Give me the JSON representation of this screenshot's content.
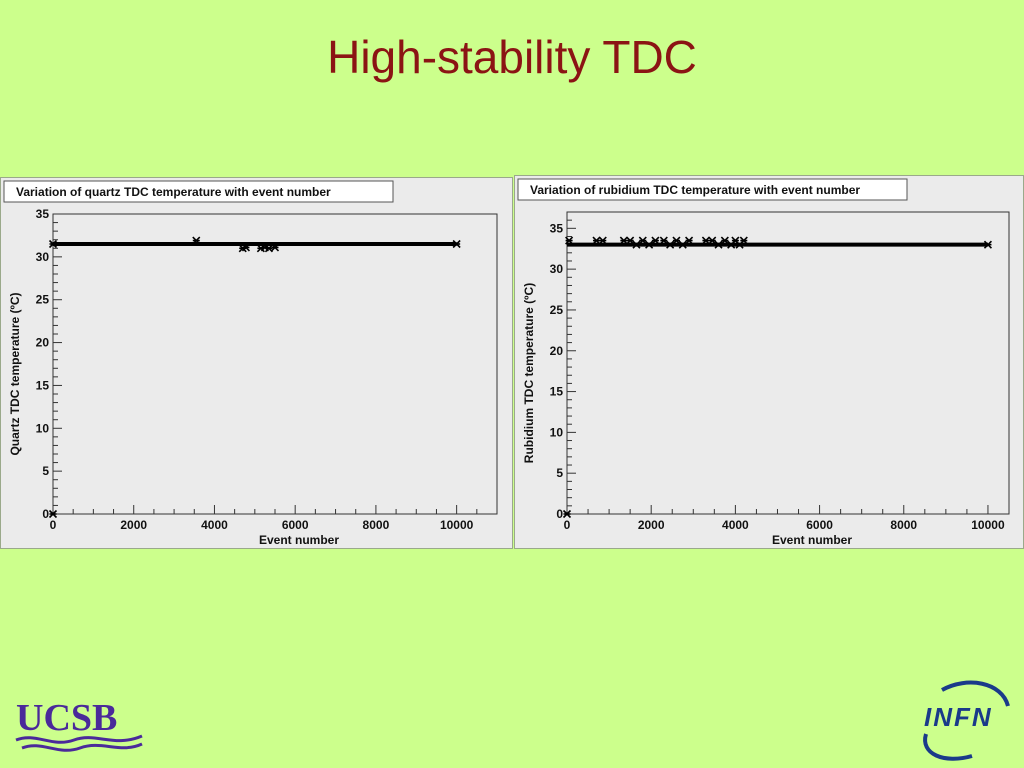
{
  "slide": {
    "title": "High-stability TDC",
    "background": "#ccff8c",
    "title_color": "#8b1414"
  },
  "logos": {
    "ucsb": {
      "text": "UCSB",
      "color": "#4a2a9a"
    },
    "infn": {
      "text": "INFN",
      "color": "#1a3a8a",
      "accent": "#2a9ab8"
    }
  },
  "chart_data": [
    {
      "type": "scatter",
      "title": "Variation of quartz TDC temperature with event number",
      "xlabel": "Event number",
      "ylabel": "Quartz TDC temperature (ºC)",
      "xlim": [
        0,
        11000
      ],
      "ylim": [
        0,
        35
      ],
      "xticks": [
        0,
        2000,
        4000,
        6000,
        8000,
        10000
      ],
      "yticks": [
        0,
        5,
        10,
        15,
        20,
        25,
        30,
        35
      ],
      "grid": false,
      "marker": "star",
      "series": [
        {
          "baseline": {
            "x": [
              0,
              10000
            ],
            "y": 31.5
          },
          "points": [
            {
              "x": 0,
              "y": 31.5
            },
            {
              "x": 0,
              "y": 0
            },
            {
              "x": 3550,
              "y": 31.9
            },
            {
              "x": 4700,
              "y": 31.0
            },
            {
              "x": 4780,
              "y": 31.1
            },
            {
              "x": 5150,
              "y": 31.0
            },
            {
              "x": 5250,
              "y": 31.1
            },
            {
              "x": 5350,
              "y": 31.0
            },
            {
              "x": 5500,
              "y": 31.1
            },
            {
              "x": 10000,
              "y": 31.5
            }
          ]
        }
      ]
    },
    {
      "type": "scatter",
      "title": "Variation of rubidium TDC temperature with event number",
      "xlabel": "Event number",
      "ylabel": "Rubidium TDC temperature (ºC)",
      "xlim": [
        0,
        10500
      ],
      "ylim": [
        0,
        37
      ],
      "xticks": [
        0,
        2000,
        4000,
        6000,
        8000,
        10000
      ],
      "yticks": [
        0,
        5,
        10,
        15,
        20,
        25,
        30,
        35
      ],
      "grid": false,
      "marker": "star",
      "series": [
        {
          "baseline": {
            "x": [
              0,
              10000
            ],
            "y": 33.0
          },
          "points": [
            {
              "x": 0,
              "y": 0
            },
            {
              "x": 50,
              "y": 33.5
            },
            {
              "x": 700,
              "y": 33.5
            },
            {
              "x": 850,
              "y": 33.5
            },
            {
              "x": 1350,
              "y": 33.5
            },
            {
              "x": 1500,
              "y": 33.5
            },
            {
              "x": 1650,
              "y": 33.0
            },
            {
              "x": 1800,
              "y": 33.5
            },
            {
              "x": 1950,
              "y": 33.0
            },
            {
              "x": 2100,
              "y": 33.5
            },
            {
              "x": 2300,
              "y": 33.5
            },
            {
              "x": 2450,
              "y": 33.0
            },
            {
              "x": 2600,
              "y": 33.5
            },
            {
              "x": 2750,
              "y": 33.0
            },
            {
              "x": 2900,
              "y": 33.5
            },
            {
              "x": 3300,
              "y": 33.5
            },
            {
              "x": 3450,
              "y": 33.5
            },
            {
              "x": 3600,
              "y": 33.0
            },
            {
              "x": 3750,
              "y": 33.5
            },
            {
              "x": 3900,
              "y": 33.0
            },
            {
              "x": 4000,
              "y": 33.5
            },
            {
              "x": 4100,
              "y": 33.0
            },
            {
              "x": 4200,
              "y": 33.5
            },
            {
              "x": 10000,
              "y": 33.0
            }
          ]
        }
      ]
    }
  ]
}
